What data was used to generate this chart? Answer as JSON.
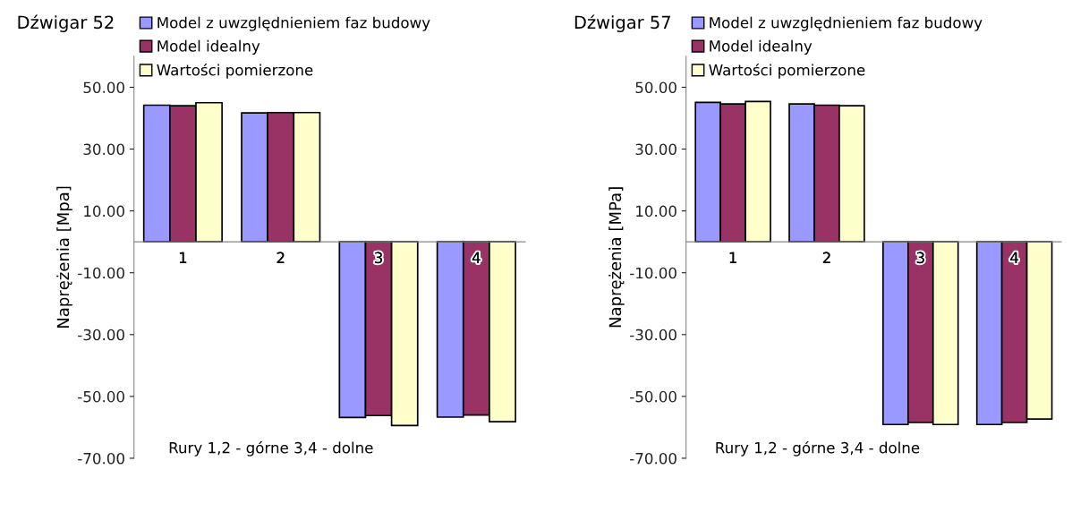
{
  "chart_data": [
    {
      "type": "bar",
      "title": "Dźwigar 52",
      "ylabel": "Naprężenia [Mpa]",
      "xlabel": "Rury 1,2 - górne 3,4 - dolne",
      "categories": [
        "1",
        "2",
        "3",
        "4"
      ],
      "series": [
        {
          "name": "Model z uwzględnieniem faz budowy",
          "color": "#9999ff",
          "values": [
            44.2,
            41.7,
            -56.8,
            -56.7
          ]
        },
        {
          "name": "Model idealny",
          "color": "#993366",
          "values": [
            44.0,
            41.8,
            -56.2,
            -56.0
          ]
        },
        {
          "name": "Wartości pomierzone",
          "color": "#ffffcc",
          "values": [
            45.0,
            41.8,
            -59.4,
            -58.2
          ]
        }
      ],
      "ylim": [
        -70,
        60
      ],
      "yticks": [
        {
          "value": -70,
          "label": "-70.00"
        },
        {
          "value": -50,
          "label": "-50.00"
        },
        {
          "value": -30,
          "label": "-30.00"
        },
        {
          "value": -10,
          "label": "-10.00"
        },
        {
          "value": 10,
          "label": "10.00"
        },
        {
          "value": 30,
          "label": "30.00"
        },
        {
          "value": 50,
          "label": "50.00"
        }
      ],
      "grid": false,
      "legend": "top"
    },
    {
      "type": "bar",
      "title": "Dźwigar 57",
      "ylabel": "Naprężenia [MPa]",
      "xlabel": "Rury 1,2 - górne 3,4 - dolne",
      "categories": [
        "1",
        "2",
        "3",
        "4"
      ],
      "series": [
        {
          "name": "Model z uwzględnieniem faz budowy",
          "color": "#9999ff",
          "values": [
            45.1,
            44.6,
            -59.1,
            -59.1
          ]
        },
        {
          "name": "Model idealny",
          "color": "#993366",
          "values": [
            44.6,
            44.2,
            -58.4,
            -58.4
          ]
        },
        {
          "name": "Wartości pomierzone",
          "color": "#ffffcc",
          "values": [
            45.4,
            44.0,
            -59.1,
            -57.3
          ]
        }
      ],
      "ylim": [
        -70,
        60
      ],
      "yticks": [
        {
          "value": -70,
          "label": "-70.00"
        },
        {
          "value": -50,
          "label": "-50.00"
        },
        {
          "value": -30,
          "label": "-30.00"
        },
        {
          "value": -10,
          "label": "-10.00"
        },
        {
          "value": 10,
          "label": "10.00"
        },
        {
          "value": 30,
          "label": "30.00"
        },
        {
          "value": 50,
          "label": "50.00"
        }
      ],
      "grid": false,
      "legend": "top"
    }
  ]
}
